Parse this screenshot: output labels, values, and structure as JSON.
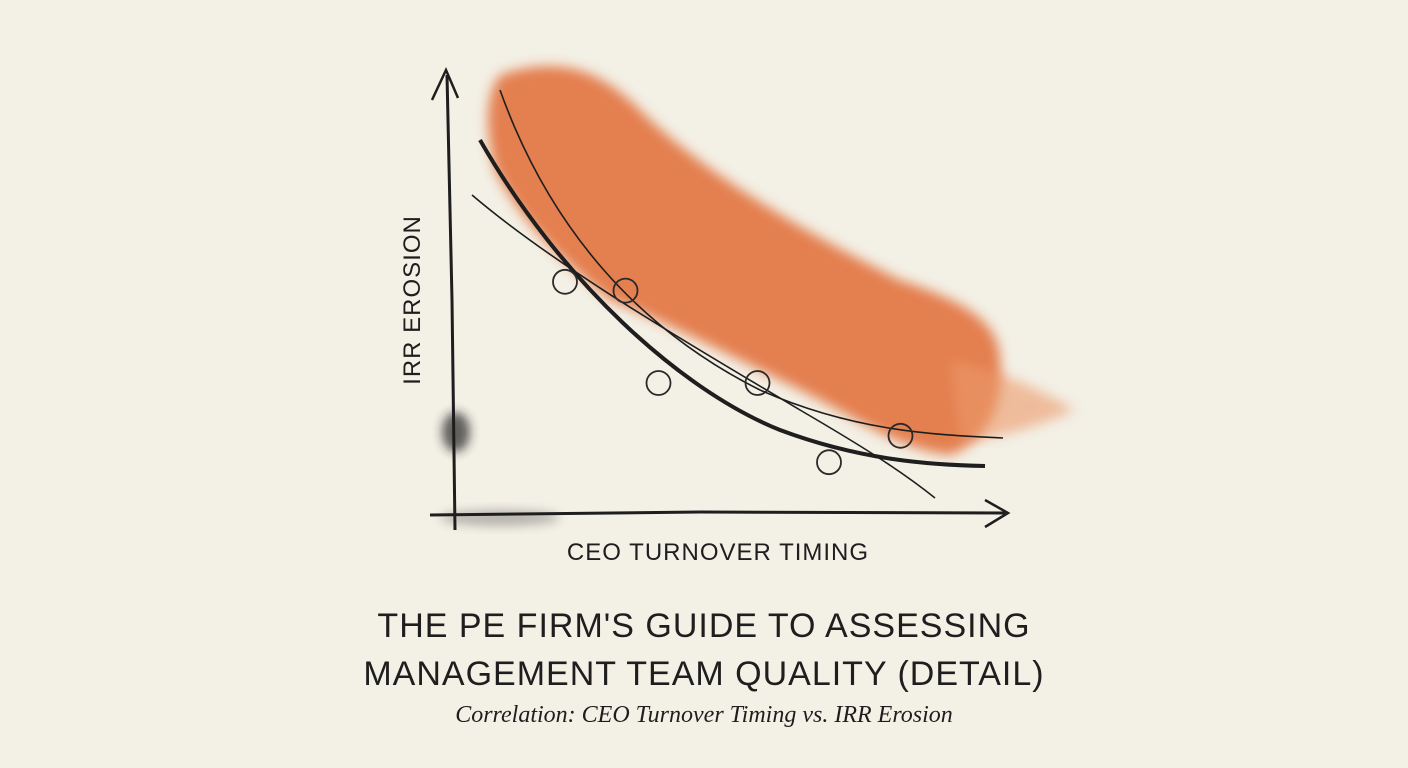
{
  "chart_data": {
    "type": "scatter",
    "title": "THE PE FIRM'S GUIDE TO ASSESSING MANAGEMENT TEAM QUALITY (DETAIL)",
    "subtitle": "Correlation: CEO Turnover Timing vs. IRR Erosion",
    "x_label": "CEO TURNOVER TIMING",
    "y_label": "IRR EROSION",
    "x": [
      20,
      31,
      37,
      55,
      68,
      81
    ],
    "values": [
      53,
      51,
      30,
      30,
      12,
      18
    ],
    "color": "#2a2a2a",
    "xlim": [
      0,
      100
    ],
    "ylim": [
      0,
      100
    ]
  }
}
